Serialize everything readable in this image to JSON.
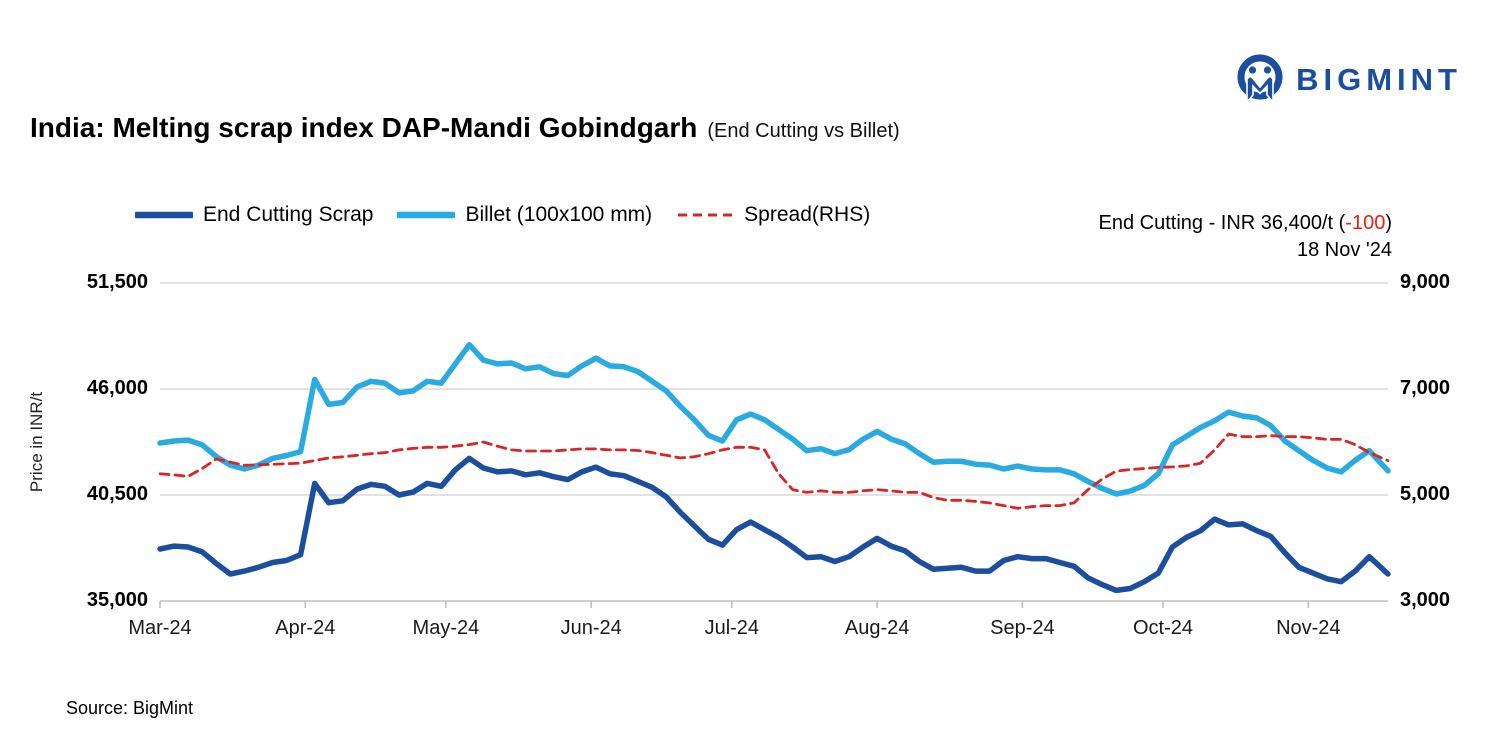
{
  "logo": {
    "text": "BIGMINT",
    "color": "#1B4F9E"
  },
  "header": {
    "title": "India: Melting scrap index DAP-Mandi Gobindgarh",
    "subtitle": "(End Cutting vs Billet)"
  },
  "annotation": {
    "line1_prefix": "End Cutting - INR 36,400/t (",
    "delta": "-100",
    "line1_suffix": ")",
    "delta_color": "#E8220F",
    "line2": "18 Nov '24"
  },
  "source": "Source: BigMint",
  "chart_data": {
    "type": "line",
    "x_unit": "days since 1 Mar 2024",
    "x": [
      0,
      3,
      6,
      9,
      12,
      15,
      18,
      21,
      24,
      27,
      30,
      33,
      36,
      39,
      42,
      45,
      48,
      51,
      54,
      57,
      60,
      63,
      66,
      69,
      72,
      75,
      78,
      81,
      84,
      87,
      90,
      93,
      96,
      99,
      102,
      105,
      108,
      111,
      114,
      117,
      120,
      123,
      126,
      129,
      132,
      135,
      138,
      141,
      144,
      147,
      150,
      153,
      156,
      159,
      162,
      165,
      168,
      171,
      174,
      177,
      180,
      183,
      186,
      189,
      192,
      195,
      198,
      201,
      204,
      207,
      210,
      213,
      216,
      219,
      222,
      225,
      228,
      231,
      234,
      237,
      240,
      243,
      246,
      249,
      252,
      255,
      258,
      262
    ],
    "x_ticks": {
      "days": [
        0,
        31,
        61,
        92,
        122,
        153,
        184,
        214,
        245
      ],
      "labels": [
        "Mar-24",
        "Apr-24",
        "May-24",
        "Jun-24",
        "Jul-24",
        "Aug-24",
        "Sep-24",
        "Oct-24",
        "Nov-24"
      ]
    },
    "left_axis": {
      "label": "Price in INR/t",
      "min": 35000,
      "max": 51500,
      "ticks": [
        35000,
        40500,
        46000,
        51500
      ],
      "tick_labels": [
        "35,000",
        "40,500",
        "46,000",
        "51,500"
      ]
    },
    "right_axis": {
      "min": 3000,
      "max": 9000,
      "ticks": [
        3000,
        5000,
        7000,
        9000
      ],
      "tick_labels": [
        "3,000",
        "5,000",
        "7,000",
        "9,000"
      ]
    },
    "grid": "horizontal-only",
    "legend_position": "top-left",
    "series": [
      {
        "name": "End Cutting Scrap",
        "axis": "left",
        "color": "#1B4F9E",
        "style": "solid",
        "width": 5.5,
        "values": [
          37700,
          37850,
          37800,
          37550,
          36950,
          36400,
          36550,
          36750,
          37000,
          37100,
          37400,
          41100,
          40100,
          40200,
          40800,
          41050,
          40950,
          40500,
          40650,
          41100,
          40950,
          41800,
          42400,
          41900,
          41700,
          41750,
          41550,
          41650,
          41450,
          41300,
          41700,
          41950,
          41600,
          41500,
          41200,
          40900,
          40400,
          39600,
          38900,
          38200,
          37900,
          38700,
          39100,
          38700,
          38300,
          37800,
          37250,
          37300,
          37050,
          37300,
          37800,
          38250,
          37850,
          37600,
          37050,
          36650,
          36700,
          36750,
          36550,
          36550,
          37100,
          37300,
          37200,
          37200,
          37000,
          36800,
          36200,
          35850,
          35550,
          35650,
          36000,
          36450,
          37800,
          38300,
          38650,
          39250,
          38950,
          39000,
          38650,
          38350,
          37500,
          36750,
          36450,
          36150,
          36000,
          36550,
          37300,
          36400
        ]
      },
      {
        "name": "Billet (100x100 mm)",
        "axis": "left",
        "color": "#29ABE2",
        "style": "solid",
        "width": 5.5,
        "values": [
          43200,
          43300,
          43350,
          43100,
          42500,
          42050,
          41850,
          42050,
          42400,
          42550,
          42750,
          46500,
          45200,
          45300,
          46100,
          46400,
          46300,
          45800,
          45900,
          46400,
          46300,
          47300,
          48300,
          47500,
          47300,
          47350,
          47050,
          47150,
          46800,
          46700,
          47200,
          47600,
          47200,
          47150,
          46900,
          46400,
          45900,
          45100,
          44400,
          43600,
          43300,
          44400,
          44700,
          44400,
          43900,
          43400,
          42800,
          42900,
          42650,
          42850,
          43400,
          43800,
          43400,
          43150,
          42650,
          42200,
          42250,
          42250,
          42100,
          42050,
          41850,
          42000,
          41850,
          41800,
          41800,
          41600,
          41200,
          40850,
          40550,
          40700,
          41000,
          41600,
          43100,
          43550,
          44000,
          44350,
          44800,
          44600,
          44500,
          44100,
          43300,
          42800,
          42300,
          41900,
          41700,
          42300,
          42800,
          41750
        ]
      },
      {
        "name": "Spread(RHS)",
        "axis": "right",
        "color": "#D92525",
        "style": "dashed",
        "width": 2.8,
        "values": [
          5400,
          5380,
          5350,
          5500,
          5680,
          5620,
          5560,
          5570,
          5580,
          5590,
          5600,
          5650,
          5700,
          5720,
          5750,
          5780,
          5800,
          5850,
          5880,
          5900,
          5900,
          5920,
          5950,
          6000,
          5920,
          5850,
          5830,
          5830,
          5830,
          5850,
          5870,
          5870,
          5850,
          5850,
          5840,
          5800,
          5750,
          5700,
          5720,
          5780,
          5850,
          5900,
          5900,
          5850,
          5400,
          5100,
          5050,
          5080,
          5050,
          5050,
          5080,
          5100,
          5080,
          5050,
          5050,
          4950,
          4900,
          4900,
          4880,
          4850,
          4800,
          4750,
          4780,
          4800,
          4800,
          4850,
          5100,
          5300,
          5450,
          5480,
          5500,
          5520,
          5530,
          5550,
          5600,
          5850,
          6150,
          6100,
          6100,
          6120,
          6100,
          6100,
          6080,
          6050,
          6050,
          5950,
          5800,
          5650
        ]
      }
    ],
    "latest_point": {
      "series": "End Cutting Scrap",
      "value": 36400,
      "change": -100,
      "date": "18 Nov '24"
    }
  }
}
